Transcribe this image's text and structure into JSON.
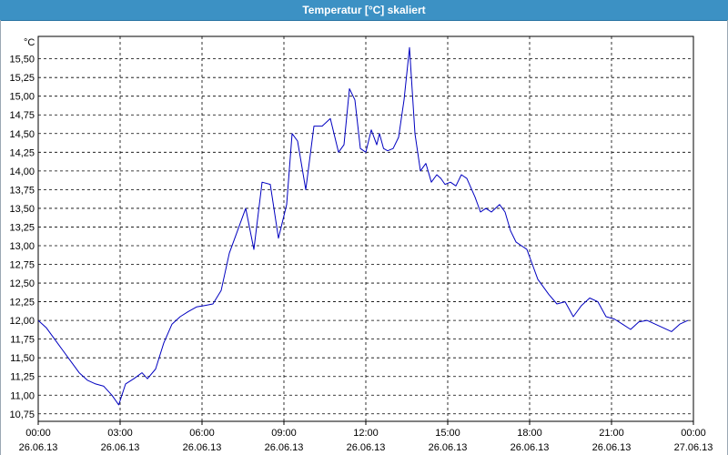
{
  "window": {
    "title": "Temperatur [°C] skaliert"
  },
  "chart_data": {
    "type": "line",
    "title": "Temperatur [°C] skaliert",
    "ylabel": "°C",
    "xlabel": "",
    "ylim": [
      10.65,
      15.8
    ],
    "xlim": [
      0,
      24
    ],
    "grid": true,
    "y_ticks": [
      "10,75",
      "11,00",
      "11,25",
      "11,50",
      "11,75",
      "12,00",
      "12,25",
      "12,50",
      "12,75",
      "13,00",
      "13,25",
      "13,50",
      "13,75",
      "14,00",
      "14,25",
      "14,50",
      "14,75",
      "15,00",
      "15,25",
      "15,50"
    ],
    "y_tick_values": [
      10.75,
      11.0,
      11.25,
      11.5,
      11.75,
      12.0,
      12.25,
      12.5,
      12.75,
      13.0,
      13.25,
      13.5,
      13.75,
      14.0,
      14.25,
      14.5,
      14.75,
      15.0,
      15.25,
      15.5
    ],
    "x_ticks": [
      {
        "time": "00:00",
        "date": "26.06.13"
      },
      {
        "time": "03:00",
        "date": "26.06.13"
      },
      {
        "time": "06:00",
        "date": "26.06.13"
      },
      {
        "time": "09:00",
        "date": "26.06.13"
      },
      {
        "time": "12:00",
        "date": "26.06.13"
      },
      {
        "time": "15:00",
        "date": "26.06.13"
      },
      {
        "time": "18:00",
        "date": "26.06.13"
      },
      {
        "time": "21:00",
        "date": "26.06.13"
      },
      {
        "time": "00:00",
        "date": "27.06.13"
      }
    ],
    "x_tick_values": [
      0,
      3,
      6,
      9,
      12,
      15,
      18,
      21,
      24
    ],
    "series": [
      {
        "color": "#0000c0",
        "x": [
          0,
          0.3,
          0.6,
          0.9,
          1.2,
          1.5,
          1.8,
          2.1,
          2.4,
          2.7,
          2.95,
          3.2,
          3.5,
          3.8,
          4.0,
          4.3,
          4.6,
          4.9,
          5.2,
          5.5,
          5.8,
          6.1,
          6.4,
          6.7,
          7.0,
          7.3,
          7.6,
          7.9,
          8.2,
          8.5,
          8.8,
          9.1,
          9.3,
          9.5,
          9.8,
          10.1,
          10.4,
          10.7,
          11.0,
          11.2,
          11.4,
          11.6,
          11.8,
          12.0,
          12.2,
          12.4,
          12.5,
          12.65,
          12.8,
          13.0,
          13.2,
          13.4,
          13.6,
          13.8,
          14.0,
          14.2,
          14.4,
          14.6,
          14.75,
          14.9,
          15.1,
          15.3,
          15.5,
          15.7,
          16.0,
          16.2,
          16.4,
          16.6,
          16.9,
          17.1,
          17.3,
          17.5,
          17.7,
          17.9,
          18.1,
          18.3,
          18.5,
          18.7,
          19.0,
          19.3,
          19.6,
          19.9,
          20.2,
          20.5,
          20.8,
          21.1,
          21.4,
          21.7,
          22.0,
          22.3,
          22.6,
          22.9,
          23.2,
          23.5,
          23.8
        ],
        "y": [
          12.0,
          11.9,
          11.75,
          11.6,
          11.45,
          11.3,
          11.2,
          11.15,
          11.12,
          11.0,
          10.87,
          11.15,
          11.22,
          11.3,
          11.22,
          11.35,
          11.7,
          11.95,
          12.05,
          12.12,
          12.18,
          12.2,
          12.22,
          12.4,
          12.9,
          13.2,
          13.5,
          12.95,
          13.85,
          13.82,
          13.1,
          13.55,
          14.5,
          14.4,
          13.75,
          14.6,
          14.6,
          14.7,
          14.25,
          14.35,
          15.1,
          14.95,
          14.3,
          14.25,
          14.55,
          14.35,
          14.5,
          14.3,
          14.27,
          14.3,
          14.45,
          14.95,
          15.65,
          14.5,
          14.0,
          14.1,
          13.85,
          13.95,
          13.9,
          13.82,
          13.85,
          13.8,
          13.95,
          13.9,
          13.65,
          13.45,
          13.5,
          13.45,
          13.55,
          13.45,
          13.2,
          13.05,
          13.0,
          12.95,
          12.75,
          12.55,
          12.45,
          12.35,
          12.22,
          12.25,
          12.05,
          12.2,
          12.3,
          12.25,
          12.05,
          12.02,
          11.95,
          11.88,
          11.98,
          12.0,
          11.95,
          11.9,
          11.85,
          11.95,
          12.0
        ]
      }
    ]
  }
}
